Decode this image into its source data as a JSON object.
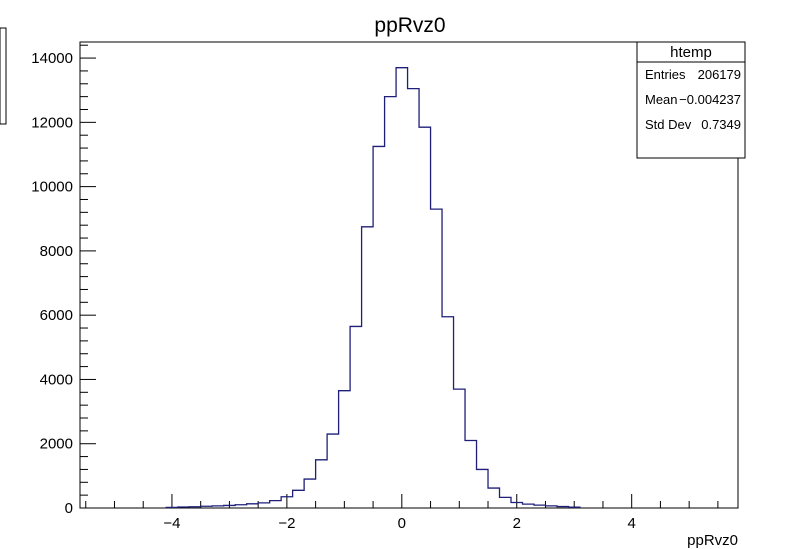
{
  "chart_data": {
    "type": "bar",
    "title": "ppRvz0",
    "xlabel": "ppRvz0",
    "ylabel": "",
    "xlim": [
      -5.6,
      5.85
    ],
    "ylim": [
      0,
      14500
    ],
    "bin_width": 0.2,
    "x_ticks": [
      {
        "value": -4,
        "label": "−4"
      },
      {
        "value": -2,
        "label": "−2"
      },
      {
        "value": 0,
        "label": "0"
      },
      {
        "value": 2,
        "label": "2"
      },
      {
        "value": 4,
        "label": "4"
      }
    ],
    "y_ticks": [
      {
        "value": 0,
        "label": "0"
      },
      {
        "value": 2000,
        "label": "2000"
      },
      {
        "value": 4000,
        "label": "4000"
      },
      {
        "value": 6000,
        "label": "6000"
      },
      {
        "value": 8000,
        "label": "8000"
      },
      {
        "value": 10000,
        "label": "10000"
      },
      {
        "value": 12000,
        "label": "12000"
      },
      {
        "value": 14000,
        "label": "14000"
      }
    ],
    "bins": [
      {
        "x": -4.0,
        "y": 20
      },
      {
        "x": -3.8,
        "y": 30
      },
      {
        "x": -3.6,
        "y": 40
      },
      {
        "x": -3.4,
        "y": 55
      },
      {
        "x": -3.2,
        "y": 65
      },
      {
        "x": -3.0,
        "y": 80
      },
      {
        "x": -2.8,
        "y": 100
      },
      {
        "x": -2.6,
        "y": 130
      },
      {
        "x": -2.4,
        "y": 160
      },
      {
        "x": -2.2,
        "y": 230
      },
      {
        "x": -2.0,
        "y": 350
      },
      {
        "x": -1.8,
        "y": 550
      },
      {
        "x": -1.6,
        "y": 900
      },
      {
        "x": -1.4,
        "y": 1500
      },
      {
        "x": -1.2,
        "y": 2300
      },
      {
        "x": -1.0,
        "y": 3650
      },
      {
        "x": -0.8,
        "y": 5650
      },
      {
        "x": -0.6,
        "y": 8750
      },
      {
        "x": -0.4,
        "y": 11250
      },
      {
        "x": -0.2,
        "y": 12800
      },
      {
        "x": 0.0,
        "y": 13700
      },
      {
        "x": 0.2,
        "y": 13050
      },
      {
        "x": 0.4,
        "y": 11850
      },
      {
        "x": 0.6,
        "y": 9300
      },
      {
        "x": 0.8,
        "y": 5950
      },
      {
        "x": 1.0,
        "y": 3700
      },
      {
        "x": 1.2,
        "y": 2100
      },
      {
        "x": 1.4,
        "y": 1200
      },
      {
        "x": 1.6,
        "y": 620
      },
      {
        "x": 1.8,
        "y": 330
      },
      {
        "x": 2.0,
        "y": 170
      },
      {
        "x": 2.2,
        "y": 120
      },
      {
        "x": 2.4,
        "y": 90
      },
      {
        "x": 2.6,
        "y": 65
      },
      {
        "x": 2.8,
        "y": 45
      },
      {
        "x": 3.0,
        "y": 25
      }
    ],
    "color": "#1f1f7a",
    "stats_box": {
      "name": "htemp",
      "rows": [
        {
          "label": "Entries",
          "value": "206179"
        },
        {
          "label": "Mean",
          "value": "−0.004237"
        },
        {
          "label": "Std Dev",
          "value": "0.7349"
        }
      ]
    }
  }
}
